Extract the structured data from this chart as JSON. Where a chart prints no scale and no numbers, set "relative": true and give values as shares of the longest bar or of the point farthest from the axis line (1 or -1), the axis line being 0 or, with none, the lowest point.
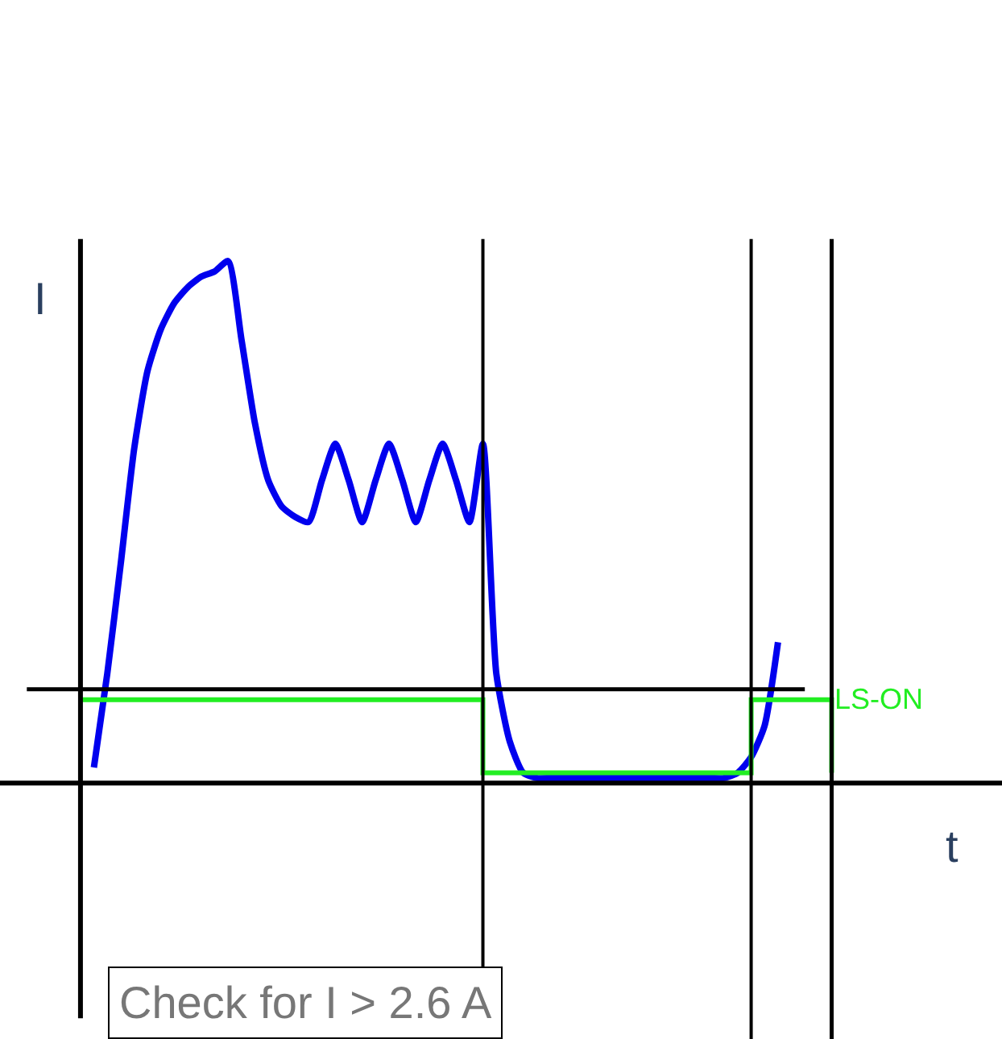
{
  "chart_data": {
    "type": "line",
    "relative": true,
    "xlabel": "t",
    "ylabel": "I",
    "categories": [
      null,
      null,
      null,
      null,
      null,
      null,
      null,
      null,
      null,
      null,
      null,
      null,
      null,
      null,
      null,
      null,
      null,
      null,
      null,
      null,
      null,
      null,
      null,
      null,
      null,
      null,
      null,
      null,
      null,
      null,
      null,
      null,
      null,
      null,
      null,
      null,
      null,
      null,
      null,
      null,
      null,
      null,
      null,
      null,
      null,
      null,
      null,
      null,
      null,
      null,
      null,
      null,
      null,
      null,
      null,
      null,
      null
    ],
    "series": [
      {
        "color": "#0000ee",
        "values": [
          null,
          0.03,
          0.21,
          0.42,
          0.64,
          0.79,
          0.87,
          0.92,
          0.95,
          0.97,
          0.98,
          1.0,
          0.85,
          0.69,
          0.58,
          0.53,
          0.51,
          0.5,
          0.58,
          0.65,
          0.58,
          0.5,
          0.58,
          0.65,
          0.58,
          0.5,
          0.58,
          0.65,
          0.58,
          0.5,
          0.65,
          0.21,
          0.08,
          0.02,
          0.01,
          0.01,
          0.01,
          0.01,
          0.01,
          0.01,
          0.01,
          0.01,
          0.01,
          0.01,
          0.01,
          0.01,
          0.01,
          0.01,
          0.01,
          0.02,
          0.05,
          0.11,
          0.27,
          null,
          null,
          null,
          null
        ]
      },
      {
        "name": "LS-ON",
        "type": "step",
        "color": "#22ee22",
        "values": [
          0.16,
          0.16,
          0.16,
          0.16,
          0.16,
          0.16,
          0.16,
          0.16,
          0.16,
          0.16,
          0.16,
          0.16,
          0.16,
          0.16,
          0.16,
          0.16,
          0.16,
          0.16,
          0.16,
          0.16,
          0.16,
          0.16,
          0.16,
          0.16,
          0.16,
          0.16,
          0.16,
          0.16,
          0.16,
          0.16,
          0.02,
          0.02,
          0.02,
          0.02,
          0.02,
          0.02,
          0.02,
          0.02,
          0.02,
          0.02,
          0.02,
          0.02,
          0.02,
          0.02,
          0.02,
          0.02,
          0.02,
          0.02,
          0.02,
          0.02,
          0.16,
          0.16,
          0.16,
          0.16,
          0.16,
          0.16,
          0.02
        ]
      }
    ],
    "ref_lines": [
      {
        "axis": "y",
        "value": 0.18,
        "color": "#000000"
      }
    ],
    "annotations": [
      "Check for I > 2.6 A"
    ],
    "legend": false
  }
}
